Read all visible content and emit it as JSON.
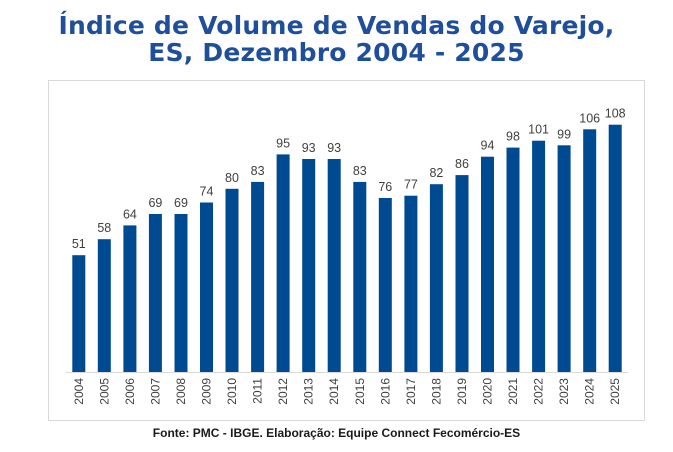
{
  "chart_data": {
    "type": "bar",
    "title": "Índice de Volume de Vendas do Varejo, ES, Dezembro 2004 - 2025",
    "title_lines": [
      "Índice de Volume de Vendas do Varejo,",
      "ES, Dezembro 2004 - 2025"
    ],
    "xlabel": "",
    "ylabel": "",
    "ylim": [
      0,
      110
    ],
    "grid": false,
    "legend": "none",
    "bar_color": "#004a91",
    "title_color": "#1f4e9a",
    "categories": [
      "2004",
      "2005",
      "2006",
      "2007",
      "2008",
      "2009",
      "2010",
      "2011",
      "2012",
      "2013",
      "2014",
      "2015",
      "2016",
      "2017",
      "2018",
      "2019",
      "2020",
      "2021",
      "2022",
      "2023",
      "2024",
      "2025"
    ],
    "values": [
      51,
      58,
      64,
      69,
      69,
      74,
      80,
      83,
      95,
      93,
      93,
      83,
      76,
      77,
      82,
      86,
      94,
      98,
      101,
      99,
      106,
      108
    ],
    "source": "Fonte: PMC - IBGE.  Elaboração: Equipe Connect Fecomércio-ES"
  }
}
